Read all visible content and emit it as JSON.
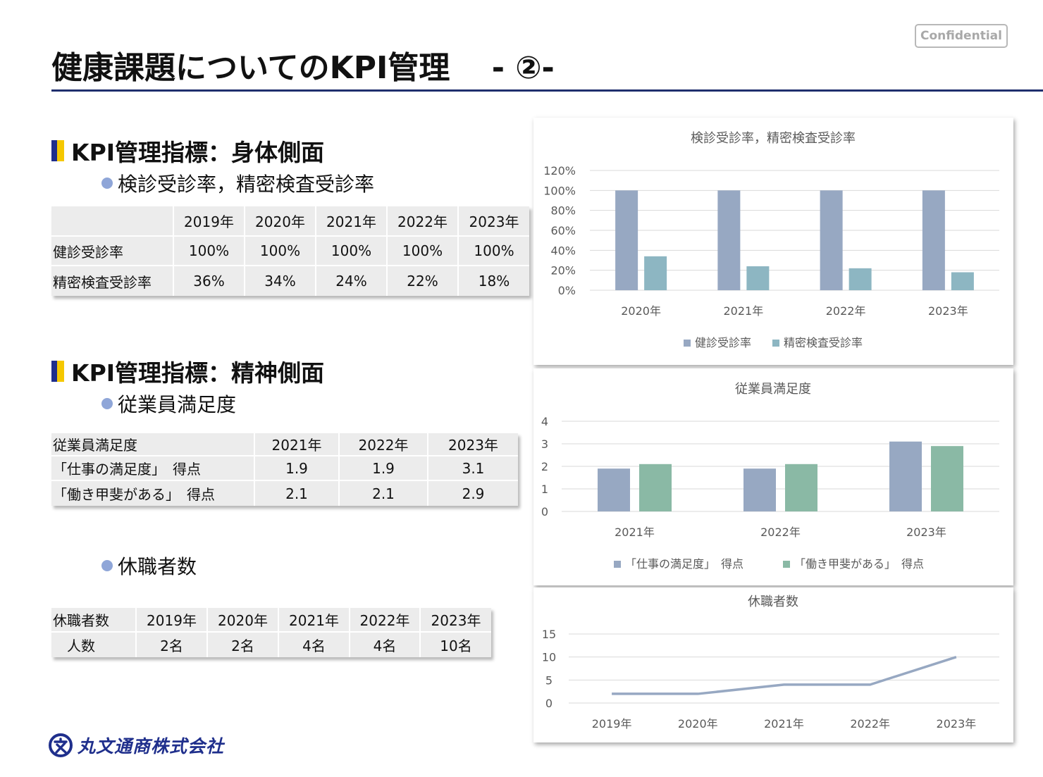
{
  "header": {
    "title": "健康課題についてのKPI管理　 - ②-",
    "confidential_label": "Confidential"
  },
  "section_physical": {
    "heading": "KPI管理指標：身体側面",
    "bullet": "検診受診率，精密検査受診率",
    "table": {
      "headers": [
        "",
        "2019年",
        "2020年",
        "2021年",
        "2022年",
        "2023年"
      ],
      "rows": [
        [
          "健診受診率",
          "100%",
          "100%",
          "100%",
          "100%",
          "100%"
        ],
        [
          "精密検査受診率",
          "36%",
          "34%",
          "24%",
          "22%",
          "18%"
        ]
      ]
    }
  },
  "section_mental": {
    "heading": "KPI管理指標：精神側面",
    "bullet_satisfaction": "従業員満足度",
    "satisfaction_table": {
      "headers": [
        "従業員満足度",
        "2021年",
        "2022年",
        "2023年"
      ],
      "rows": [
        [
          "「仕事の満足度」　得点",
          "1.9",
          "1.9",
          "3.1"
        ],
        [
          "「働き甲斐がある」　得点",
          "2.1",
          "2.1",
          "2.9"
        ]
      ]
    },
    "bullet_leave": "休職者数",
    "leave_table": {
      "headers": [
        "休職者数",
        "2019年",
        "2020年",
        "2021年",
        "2022年",
        "2023年"
      ],
      "rows": [
        [
          "　人数",
          "2名",
          "2名",
          "4名",
          "4名",
          "10名"
        ]
      ]
    }
  },
  "footer": {
    "company_name": "丸文通商株式会社",
    "logo_icon": "maru-bun-logo-icon"
  },
  "colors": {
    "title_rule": "#1f2f6e",
    "bar_blue": "#97a8c2",
    "bar_teal": "#8db6c2",
    "bar_green": "#8ab9a5",
    "line": "#97a8c2"
  },
  "chart_data": [
    {
      "type": "bar",
      "title": "検診受診率，精密検査受診率",
      "categories": [
        "2020年",
        "2021年",
        "2022年",
        "2023年"
      ],
      "series": [
        {
          "name": "健診受診率",
          "values": [
            100,
            100,
            100,
            100
          ]
        },
        {
          "name": "精密検査受診率",
          "values": [
            34,
            24,
            22,
            18
          ]
        }
      ],
      "yticks": [
        "120%",
        "100%",
        "80%",
        "60%",
        "40%",
        "20%",
        "0%"
      ],
      "ylim": [
        0,
        120
      ],
      "grid": true,
      "legend": "bottom"
    },
    {
      "type": "bar",
      "title": "従業員満足度",
      "categories": [
        "2021年",
        "2022年",
        "2023年"
      ],
      "series": [
        {
          "name": "「仕事の満足度」　得点",
          "values": [
            1.9,
            1.9,
            3.1
          ]
        },
        {
          "name": "「働き甲斐がある」　得点",
          "values": [
            2.1,
            2.1,
            2.9
          ]
        }
      ],
      "yticks": [
        "4",
        "3",
        "2",
        "1",
        "0"
      ],
      "ylim": [
        0,
        4
      ],
      "grid": true,
      "legend": "bottom"
    },
    {
      "type": "line",
      "title": "休職者数",
      "categories": [
        "2019年",
        "2020年",
        "2021年",
        "2022年",
        "2023年"
      ],
      "series": [
        {
          "values": [
            2,
            2,
            4,
            4,
            10
          ]
        }
      ],
      "yticks": [
        "15",
        "10",
        "5",
        "0"
      ],
      "ylim": [
        0,
        15
      ],
      "grid": true
    }
  ]
}
